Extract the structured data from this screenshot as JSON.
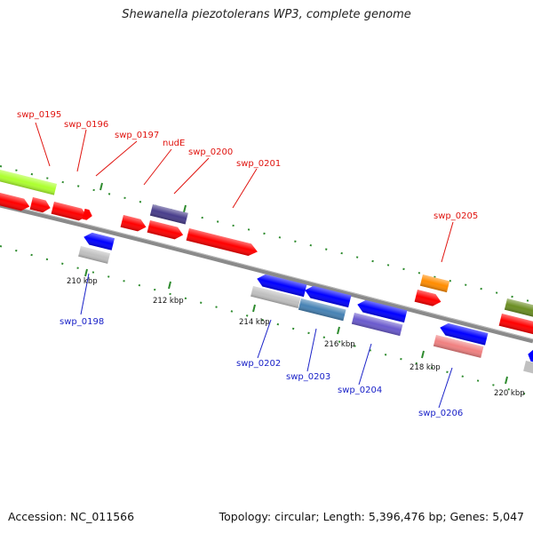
{
  "title": "Shewanella piezotolerans WP3, complete genome",
  "footer": {
    "accession": "Accession: NC_011566",
    "summary": "Topology: circular; Length: 5,396,476 bp; Genes: 5,047"
  },
  "ticks": [
    "210 kbp",
    "212 kbp",
    "214 kbp",
    "216 kbp",
    "218 kbp",
    "220 kbp"
  ],
  "gene_labels_top": [
    "swp_0195",
    "swp_0196",
    "swp_0197",
    "nudE",
    "swp_0200",
    "swp_0201",
    "swp_0205"
  ],
  "gene_labels_bottom": [
    "swp_0198",
    "swp_0202",
    "swp_0203",
    "swp_0204",
    "swp_0206"
  ],
  "colors": {
    "forward_gene": "#ff0000",
    "reverse_gene": "#0000ff",
    "label_top": "#e0140f",
    "label_bottom": "#1a22c8",
    "backbone": "#808080",
    "tick_marks": "#2e8b2e"
  }
}
